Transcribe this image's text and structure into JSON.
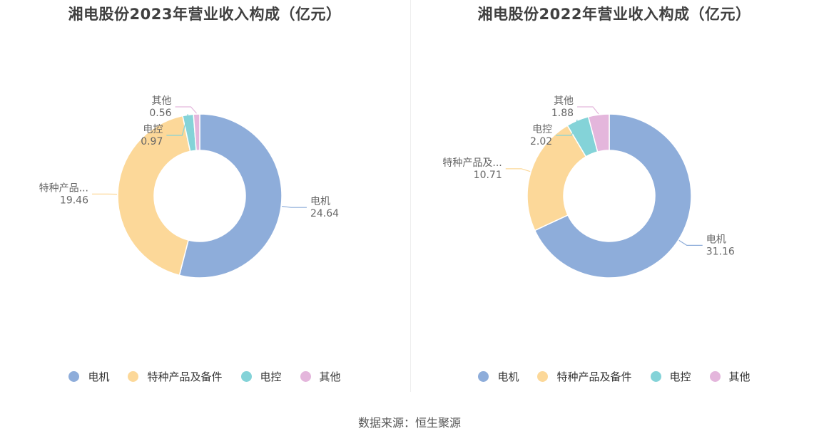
{
  "colors": {
    "电机": "#8eadda",
    "特种产品及备件": "#fcd899",
    "电控": "#84d3d8",
    "其他": "#e4b6dc"
  },
  "chart_data": [
    {
      "type": "pie",
      "title": "湘电股份2023年营业收入构成（亿元）",
      "categories": [
        "电机",
        "特种产品及备件",
        "电控",
        "其他"
      ],
      "display_labels": [
        "电机",
        "特种产品...",
        "电控",
        "其他"
      ],
      "values": [
        24.64,
        19.46,
        0.97,
        0.56
      ],
      "value_labels": [
        "24.64",
        "19.46",
        "0.97",
        "0.56"
      ],
      "legend": "bottom"
    },
    {
      "type": "pie",
      "title": "湘电股份2022年营业收入构成（亿元）",
      "categories": [
        "电机",
        "特种产品及备件",
        "电控",
        "其他"
      ],
      "display_labels": [
        "电机",
        "特种产品及...",
        "电控",
        "其他"
      ],
      "values": [
        31.16,
        10.71,
        2.02,
        1.88
      ],
      "value_labels": [
        "31.16",
        "10.71",
        "2.02",
        "1.88"
      ],
      "legend": "bottom"
    }
  ],
  "legend_items": [
    "电机",
    "特种产品及备件",
    "电控",
    "其他"
  ],
  "source": "数据来源：恒生聚源"
}
